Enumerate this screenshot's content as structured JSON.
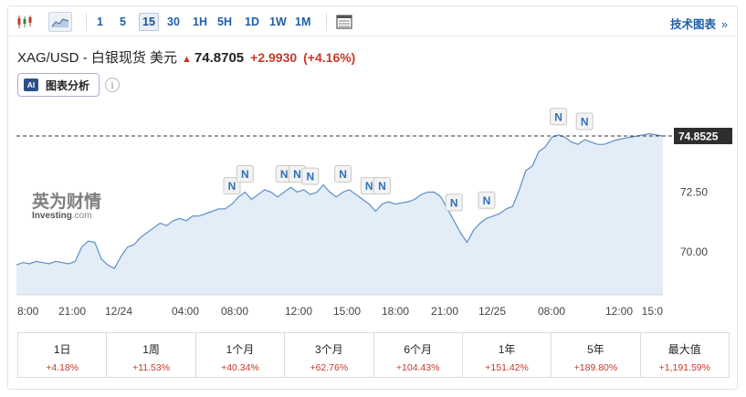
{
  "toolbar": {
    "timeframes": [
      "1",
      "5",
      "15",
      "30",
      "1H",
      "5H",
      "1D",
      "1W",
      "1M"
    ],
    "active_timeframe": "15",
    "tech_link": "技术图表"
  },
  "quote": {
    "name": "XAG/USD - 白银现货 美元",
    "price": "74.8705",
    "change": "+2.9930",
    "change_pct": "(+4.16%)",
    "up_color": "#c8392b"
  },
  "ai_button": {
    "badge": "AI",
    "label": "图表分析"
  },
  "watermark": {
    "cn": "英为财情",
    "en_main": "Investing",
    "en_suffix": ".com"
  },
  "chart_data": {
    "type": "area",
    "title": "",
    "x_ticks": [
      "8:00",
      "21:00",
      "12/24",
      "04:00",
      "08:00",
      "12:00",
      "15:00",
      "18:00",
      "21:00",
      "12/25",
      "08:00",
      "12:00",
      "15:0"
    ],
    "y_ticks": [
      70.0,
      72.5
    ],
    "ylim": [
      68.2,
      76.0
    ],
    "current_value": 74.8525,
    "current_label": "74.8525",
    "series": [
      {
        "values": [
          69.45,
          69.55,
          69.5,
          69.6,
          69.55,
          69.5,
          69.6,
          69.55,
          69.5,
          69.6,
          70.2,
          70.45,
          70.4,
          69.7,
          69.45,
          69.3,
          69.8,
          70.2,
          70.3,
          70.6,
          70.8,
          71.0,
          71.2,
          71.1,
          71.3,
          71.4,
          71.3,
          71.5,
          71.5,
          71.6,
          71.7,
          71.8,
          71.8,
          72.0,
          72.3,
          72.5,
          72.2,
          72.4,
          72.6,
          72.5,
          72.3,
          72.5,
          72.7,
          72.5,
          72.6,
          72.4,
          72.5,
          72.8,
          72.5,
          72.3,
          72.5,
          72.6,
          72.4,
          72.2,
          72.0,
          71.7,
          72.0,
          72.1,
          72.0,
          72.05,
          72.1,
          72.2,
          72.4,
          72.5,
          72.5,
          72.3,
          71.8,
          71.3,
          70.8,
          70.4,
          70.9,
          71.2,
          71.4,
          71.5,
          71.6,
          71.8,
          71.9,
          72.6,
          73.4,
          73.6,
          74.2,
          74.4,
          74.8,
          74.9,
          74.8,
          74.6,
          74.5,
          74.7,
          74.6,
          74.5,
          74.5,
          74.6,
          74.7,
          74.75,
          74.8,
          74.85,
          74.9,
          74.95,
          74.9,
          74.85
        ]
      }
    ],
    "news_markers": [
      {
        "label": "N",
        "x_index": 33
      },
      {
        "label": "N",
        "x_index": 35
      },
      {
        "label": "N",
        "x_index": 41
      },
      {
        "label": "N",
        "x_index": 43
      },
      {
        "label": "N",
        "x_index": 45
      },
      {
        "label": "N",
        "x_index": 50
      },
      {
        "label": "N",
        "x_index": 54
      },
      {
        "label": "N",
        "x_index": 56
      },
      {
        "label": "N",
        "x_index": 67
      },
      {
        "label": "N",
        "x_index": 72
      },
      {
        "label": "N",
        "x_index": 83
      },
      {
        "label": "N",
        "x_index": 87
      }
    ]
  },
  "periods": [
    {
      "label": "1日",
      "value": "+4.18%"
    },
    {
      "label": "1周",
      "value": "+11.53%"
    },
    {
      "label": "1个月",
      "value": "+40.34%"
    },
    {
      "label": "3个月",
      "value": "+62.76%"
    },
    {
      "label": "6个月",
      "value": "+104.43%"
    },
    {
      "label": "1年",
      "value": "+151.42%"
    },
    {
      "label": "5年",
      "value": "+189.80%"
    },
    {
      "label": "最大值",
      "value": "+1,191.59%"
    }
  ]
}
